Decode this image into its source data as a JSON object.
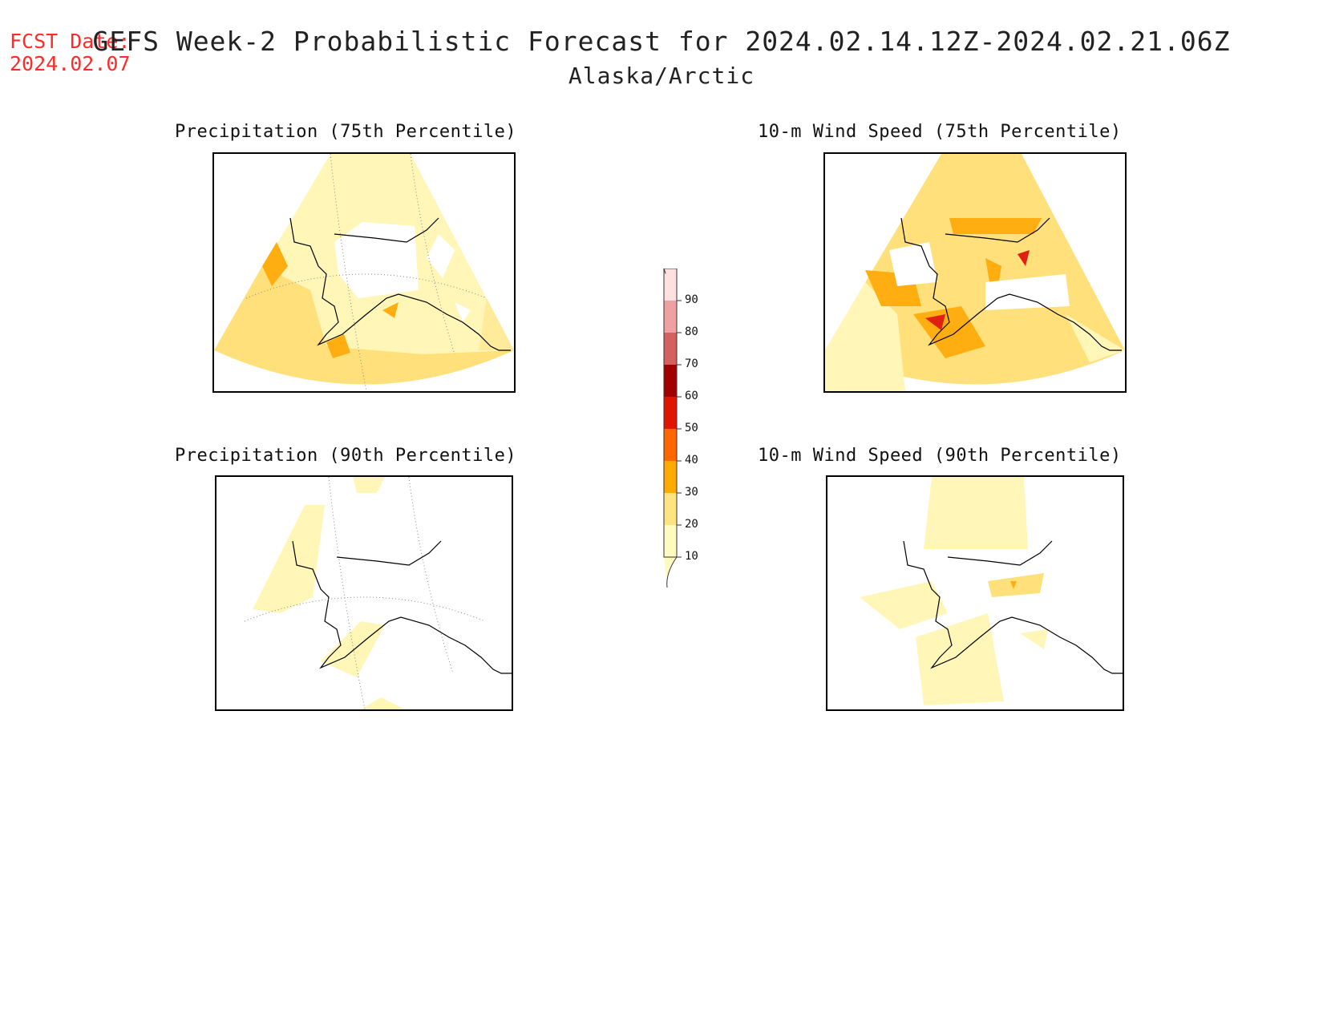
{
  "header": {
    "fcst_label": "FCST Date:",
    "fcst_date": "2024.02.07",
    "title": "GEFS Week-2 Probabilistic Forecast for 2024.02.14.12Z-2024.02.21.06Z",
    "subtitle": "Alaska/Arctic"
  },
  "panels": [
    {
      "title": "Precipitation (75th Percentile)"
    },
    {
      "title": "10-m Wind Speed (75th Percentile)"
    },
    {
      "title": "Precipitation (90th Percentile)"
    },
    {
      "title": "10-m Wind Speed (90th Percentile)"
    }
  ],
  "colorbar": {
    "levels": [
      "10",
      "20",
      "30",
      "40",
      "50",
      "60",
      "70",
      "80",
      "90"
    ],
    "colors": [
      "#fffac0",
      "#ffe380",
      "#ffaa00",
      "#ff6600",
      "#e01400",
      "#a00000",
      "#d46060",
      "#f0a0a0",
      "#fde0e0"
    ]
  },
  "legend_colors": {
    "c10": "#fff6b8",
    "c20": "#ffe07a",
    "c30": "#ffae12",
    "c40": "#ff7a10",
    "c50": "#e02010"
  }
}
